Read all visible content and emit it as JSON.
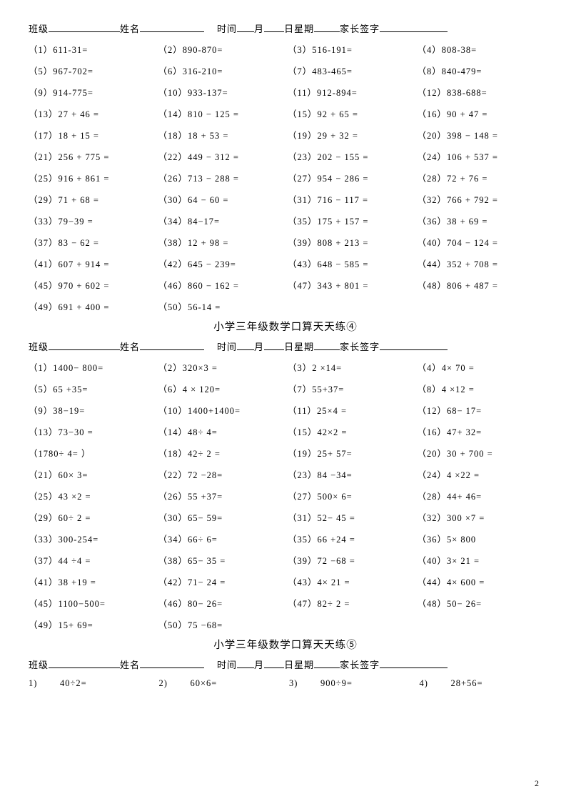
{
  "header": {
    "class_label": "班级",
    "name_label": "姓名",
    "time_label": "时间",
    "month_label": "月",
    "day_label": "日星期",
    "sign_label": "家长签字"
  },
  "section3": {
    "problems": [
      "（1）611-31=",
      "（2）890-870=",
      "（3）516-191=",
      "（4）808-38=",
      "（5）967-702=",
      "（6）316-210=",
      "（7）483-465=",
      "（8）840-479=",
      "（9）914-775=",
      "（10）933-137=",
      "（11）912-894=",
      "（12）838-688=",
      "（13）27 + 46 =",
      "（14）810 − 125 =",
      "（15）92 + 65 =",
      "（16）90 + 47 =",
      "（17）18 + 15 =",
      "（18）18 + 53 =",
      "（19）29 + 32 =",
      "（20）398 − 148 =",
      "（21）256 + 775 =",
      "（22）449 − 312 =",
      "（23）202 − 155 =",
      "（24）106 + 537 =",
      "（25）916 + 861 =",
      "（26）713 − 288 =",
      "（27）954 − 286 =",
      "（28）72 + 76 =",
      "（29）71 + 68 =",
      "（30）64 − 60 =",
      "（31）716 − 117 =",
      "（32）766 + 792 =",
      "（33）79−39 =",
      "（34）84−17=",
      "（35）175 + 157 =",
      "（36）38 + 69 =",
      "（37）83 − 62 =",
      "（38）12 + 98 =",
      "（39）808 + 213 =",
      "（40）704 − 124 =",
      "（41）607 + 914 =",
      "（42）645 − 239=",
      "（43）648 − 585 =",
      "（44）352 + 708 =",
      "（45）970 + 602 =",
      "（46）860 − 162 =",
      "（47）343 + 801 =",
      "（48）806 + 487 =",
      "（49）691 + 400 =",
      "（50）56-14 ="
    ]
  },
  "section4": {
    "title": "小学三年级数学口算天天练④",
    "problems": [
      "（1）1400− 800=",
      "（2）320×3 =",
      "（3）2 ×14=",
      "（4）4× 70 =",
      "（5）65 +35=",
      "（6）4 × 120=",
      "（7）55+37=",
      "（8）4 ×12 =",
      "（9）38−19=",
      "（10）1400+1400=",
      "（11）25×4 =",
      "（12）68− 17=",
      "（13）73−30 =",
      "（14）48÷ 4=",
      "（15）42×2 =",
      "（16）47+ 32=",
      "（1780÷ 4= ）",
      "（18）42÷ 2 =",
      "（19）25+ 57=",
      "（20）30 + 700 =",
      "（21）60× 3=",
      "（22）72 −28=",
      "（23）84 −34=",
      "（24）4 ×22 =",
      "（25）43 ×2 =",
      "（26）55 +37=",
      "（27）500× 6=",
      "（28）44+ 46=",
      "（29）60÷ 2 =",
      "（30）65− 59=",
      "（31）52− 45 =",
      "（32）300 ×7 =",
      "（33）300-254=",
      "（34）66÷ 6=",
      "（35）66 +24 =",
      "（36）5× 800",
      "（37）44 ÷4 =",
      "（38）65− 35 =",
      "（39）72 −68 =",
      "（40）3× 21 =",
      "（41）38 +19 =",
      "（42）71− 24 =",
      "（43）4× 21 =",
      "（44）4× 600 =",
      "（45）1100−500=",
      "（46）80− 26=",
      "（47）82÷ 2 =",
      "（48）50− 26=",
      "（49）15+ 69=",
      "（50）75 −68="
    ]
  },
  "section5": {
    "title": "小学三年级数学口算天天练⑤",
    "problems": [
      {
        "num": "1)",
        "expr": "40÷2="
      },
      {
        "num": "2)",
        "expr": "60×6="
      },
      {
        "num": "3)",
        "expr": "900÷9="
      },
      {
        "num": "4)",
        "expr": "28+56="
      }
    ]
  },
  "page_number": "2"
}
